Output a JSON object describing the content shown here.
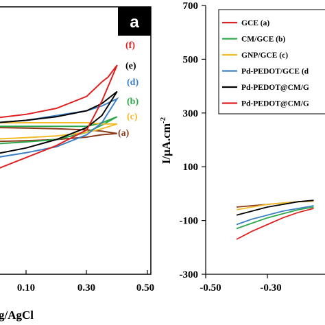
{
  "chart_data": [
    {
      "type": "line",
      "panel_label": "a",
      "xlabel": "g/AgCl",
      "x_ticks": [
        "0.10",
        "0.30",
        "0.50"
      ],
      "xlim": [
        -0.05,
        0.5
      ],
      "series": [
        {
          "label": "(a)",
          "color": "#8b3a1a",
          "forward": [
            [
              -0.05,
              -20
            ],
            [
              0.0,
              -18
            ],
            [
              0.1,
              -15
            ],
            [
              0.2,
              -10
            ],
            [
              0.3,
              0
            ],
            [
              0.35,
              10
            ],
            [
              0.4,
              15
            ]
          ],
          "reverse": [
            [
              0.4,
              15
            ],
            [
              0.35,
              25
            ],
            [
              0.3,
              30
            ],
            [
              0.2,
              35
            ],
            [
              0.1,
              38
            ],
            [
              0.0,
              40
            ],
            [
              -0.05,
              40
            ]
          ]
        },
        {
          "label": "(b)",
          "color": "#2aa84a",
          "forward": [
            [
              -0.05,
              -30
            ],
            [
              0.0,
              -28
            ],
            [
              0.1,
              -20
            ],
            [
              0.2,
              -10
            ],
            [
              0.3,
              20
            ],
            [
              0.35,
              50
            ],
            [
              0.4,
              85
            ]
          ],
          "reverse": [
            [
              0.4,
              85
            ],
            [
              0.35,
              60
            ],
            [
              0.3,
              45
            ],
            [
              0.2,
              45
            ],
            [
              0.1,
              45
            ],
            [
              0.0,
              45
            ],
            [
              -0.05,
              45
            ]
          ]
        },
        {
          "label": "(c)",
          "color": "#f2bb2a",
          "forward": [
            [
              -0.05,
              -10
            ],
            [
              0.0,
              -8
            ],
            [
              0.1,
              -2
            ],
            [
              0.2,
              5
            ],
            [
              0.3,
              20
            ],
            [
              0.35,
              35
            ],
            [
              0.4,
              55
            ]
          ],
          "reverse": [
            [
              0.4,
              55
            ],
            [
              0.35,
              55
            ],
            [
              0.3,
              60
            ],
            [
              0.2,
              60
            ],
            [
              0.1,
              60
            ],
            [
              0.0,
              60
            ],
            [
              -0.05,
              60
            ]
          ]
        },
        {
          "label": "(d)",
          "color": "#3b7fc4",
          "forward": [
            [
              -0.05,
              -95
            ],
            [
              0.0,
              -85
            ],
            [
              0.1,
              -65
            ],
            [
              0.2,
              -40
            ],
            [
              0.3,
              10
            ],
            [
              0.35,
              60
            ],
            [
              0.4,
              160
            ]
          ],
          "reverse": [
            [
              0.4,
              160
            ],
            [
              0.35,
              130
            ],
            [
              0.3,
              110
            ],
            [
              0.2,
              90
            ],
            [
              0.1,
              70
            ],
            [
              0.0,
              60
            ],
            [
              -0.05,
              55
            ]
          ]
        },
        {
          "label": "(e)",
          "color": "#000000",
          "forward": [
            [
              -0.05,
              -80
            ],
            [
              0.0,
              -70
            ],
            [
              0.1,
              -45
            ],
            [
              0.2,
              -10
            ],
            [
              0.3,
              40
            ],
            [
              0.35,
              90
            ],
            [
              0.4,
              190
            ]
          ],
          "reverse": [
            [
              0.4,
              190
            ],
            [
              0.35,
              140
            ],
            [
              0.3,
              110
            ],
            [
              0.2,
              85
            ],
            [
              0.1,
              70
            ],
            [
              0.0,
              60
            ],
            [
              -0.05,
              55
            ]
          ]
        },
        {
          "label": "(f)",
          "color": "#e02020",
          "forward": [
            [
              -0.05,
              -150
            ],
            [
              0.0,
              -135
            ],
            [
              0.1,
              -85
            ],
            [
              0.2,
              -35
            ],
            [
              0.3,
              30
            ],
            [
              0.35,
              150
            ],
            [
              0.4,
              300
            ]
          ],
          "reverse": [
            [
              0.4,
              300
            ],
            [
              0.37,
              250
            ],
            [
              0.35,
              230
            ],
            [
              0.3,
              170
            ],
            [
              0.2,
              120
            ],
            [
              0.1,
              95
            ],
            [
              0.0,
              80
            ],
            [
              -0.05,
              70
            ]
          ]
        }
      ]
    },
    {
      "type": "line",
      "ylabel": "I/μA.cm",
      "ylabel_sup": "-2",
      "x_ticks": [
        "-0.50",
        "-0.30"
      ],
      "xlim": [
        -0.5,
        -0.15
      ],
      "y_ticks": [
        "700",
        "500",
        "300",
        "100",
        "-100",
        "-300"
      ],
      "ylim": [
        -300,
        700
      ],
      "legend": {
        "position": "top-right",
        "entries": [
          {
            "label": "GCE (a)",
            "color": "#d62728"
          },
          {
            "label": "CM/GCE (b)",
            "color": "#2aa84a"
          },
          {
            "label": "GNP/GCE (c)",
            "color": "#f2bb2a"
          },
          {
            "label": "Pd-PEDOT/GCE (d",
            "color": "#3b7fc4"
          },
          {
            "label": "Pd-PEDOT@CM/G",
            "color": "#000000"
          },
          {
            "label": "Pd-PEDOT@CM/G",
            "color": "#e02020"
          }
        ]
      },
      "series": [
        {
          "color": "#8b3a1a",
          "points": [
            [
              -0.4,
              -50
            ],
            [
              -0.35,
              -45
            ],
            [
              -0.3,
              -40
            ],
            [
              -0.25,
              -35
            ],
            [
              -0.2,
              -30
            ],
            [
              -0.15,
              -28
            ]
          ]
        },
        {
          "color": "#2aa84a",
          "points": [
            [
              -0.4,
              -130
            ],
            [
              -0.35,
              -110
            ],
            [
              -0.3,
              -90
            ],
            [
              -0.25,
              -75
            ],
            [
              -0.2,
              -60
            ],
            [
              -0.15,
              -50
            ]
          ]
        },
        {
          "color": "#f2bb2a",
          "points": [
            [
              -0.4,
              -60
            ],
            [
              -0.35,
              -50
            ],
            [
              -0.3,
              -40
            ],
            [
              -0.25,
              -35
            ],
            [
              -0.2,
              -30
            ],
            [
              -0.15,
              -28
            ]
          ]
        },
        {
          "color": "#3b7fc4",
          "points": [
            [
              -0.4,
              -115
            ],
            [
              -0.35,
              -95
            ],
            [
              -0.3,
              -80
            ],
            [
              -0.25,
              -65
            ],
            [
              -0.2,
              -55
            ],
            [
              -0.15,
              -45
            ]
          ]
        },
        {
          "color": "#000000",
          "points": [
            [
              -0.4,
              -80
            ],
            [
              -0.35,
              -65
            ],
            [
              -0.3,
              -50
            ],
            [
              -0.25,
              -40
            ],
            [
              -0.2,
              -30
            ],
            [
              -0.15,
              -25
            ]
          ]
        },
        {
          "color": "#e02020",
          "points": [
            [
              -0.4,
              -170
            ],
            [
              -0.35,
              -140
            ],
            [
              -0.3,
              -115
            ],
            [
              -0.25,
              -90
            ],
            [
              -0.2,
              -70
            ],
            [
              -0.15,
              -55
            ]
          ]
        }
      ]
    }
  ]
}
